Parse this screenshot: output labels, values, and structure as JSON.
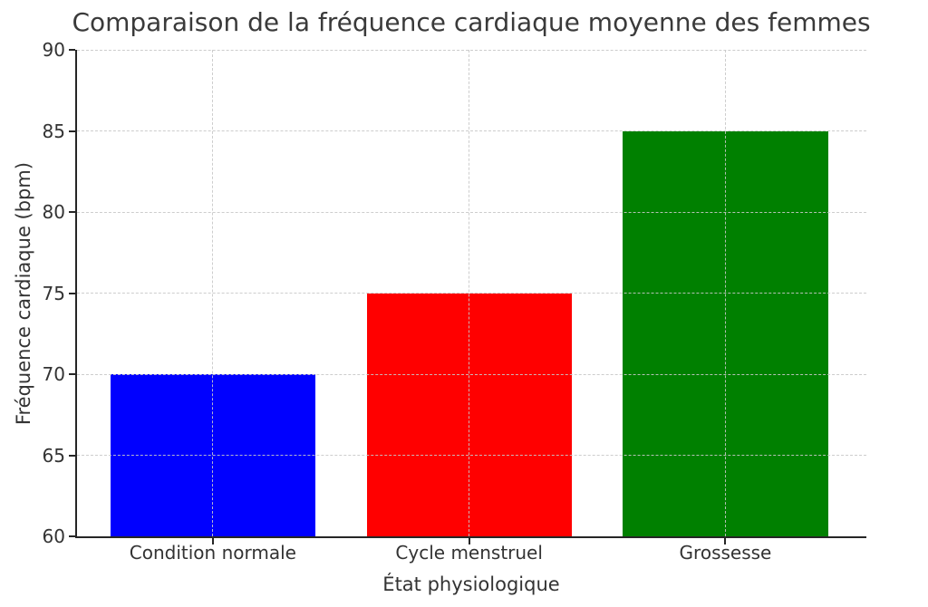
{
  "figure": {
    "background_color": "#ffffff",
    "text_color": "#333333",
    "title_color": "#3a3a3a",
    "spine_color": "#262626",
    "grid_color": "#c8c8c8"
  },
  "chart_data": {
    "type": "bar",
    "title": "Comparaison de la fréquence cardiaque moyenne des femmes",
    "xlabel": "État physiologique",
    "ylabel": "Fréquence cardiaque (bpm)",
    "categories": [
      "Condition normale",
      "Cycle menstruel",
      "Grossesse"
    ],
    "values": [
      70,
      75,
      85
    ],
    "bar_colors": [
      "#0000ff",
      "#ff0000",
      "#008000"
    ],
    "ylim": [
      60,
      90
    ],
    "yticks": [
      60,
      65,
      70,
      75,
      80,
      85,
      90
    ],
    "xlim": [
      -0.53,
      2.55
    ],
    "bar_width": 0.8,
    "grid": "dashed gridlines on both axes, drawn above bars",
    "legend": "none"
  }
}
